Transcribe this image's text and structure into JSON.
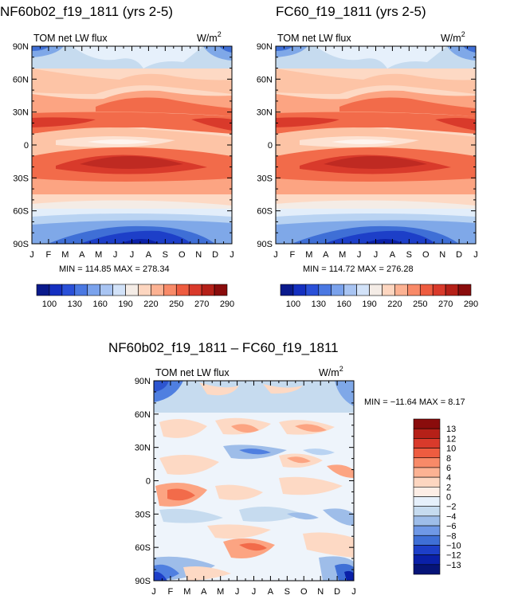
{
  "chart_data": [
    {
      "type": "heatmap",
      "title": "NF60b02_f19_1811 (yrs 2-5)",
      "variable": "TOM net LW flux",
      "units": "W/m",
      "units_exp": "2",
      "x_ticks": [
        "J",
        "F",
        "M",
        "A",
        "M",
        "J",
        "J",
        "A",
        "S",
        "O",
        "N",
        "D",
        "J"
      ],
      "y_ticks": [
        "90N",
        "60N",
        "30N",
        "0",
        "30S",
        "60S",
        "90S"
      ],
      "ylim": [
        -90,
        90
      ],
      "stats": "MIN = 114.85  MAX = 278.34",
      "colorbar_labels": [
        "100",
        "130",
        "160",
        "190",
        "220",
        "250",
        "270",
        "290"
      ]
    },
    {
      "type": "heatmap",
      "title": "FC60_f19_1811 (yrs 2-5)",
      "variable": "TOM net LW flux",
      "units": "W/m",
      "units_exp": "2",
      "x_ticks": [
        "J",
        "F",
        "M",
        "A",
        "M",
        "J",
        "J",
        "A",
        "S",
        "O",
        "N",
        "D",
        "J"
      ],
      "y_ticks": [
        "90N",
        "60N",
        "30N",
        "0",
        "30S",
        "60S",
        "90S"
      ],
      "ylim": [
        -90,
        90
      ],
      "stats": "MIN = 114.72  MAX = 276.28",
      "colorbar_labels": [
        "100",
        "130",
        "160",
        "190",
        "220",
        "250",
        "270",
        "290"
      ]
    },
    {
      "type": "heatmap",
      "title": "NF60b02_f19_1811 – FC60_f19_1811",
      "variable": "TOM net LW flux",
      "units": "W/m",
      "units_exp": "2",
      "x_ticks": [
        "J",
        "F",
        "M",
        "A",
        "M",
        "J",
        "J",
        "A",
        "S",
        "O",
        "N",
        "D",
        "J"
      ],
      "y_ticks": [
        "90N",
        "60N",
        "30N",
        "0",
        "30S",
        "60S",
        "90S"
      ],
      "ylim": [
        -90,
        90
      ],
      "stats": "MIN = −11.64  MAX =     8.17",
      "colorbar_labels": [
        "13",
        "12",
        "10",
        "8",
        "6",
        "4",
        "2",
        "0",
        "−2",
        "−4",
        "−6",
        "−8",
        "−10",
        "−12",
        "−13"
      ]
    }
  ]
}
